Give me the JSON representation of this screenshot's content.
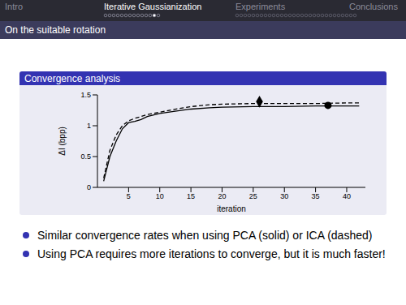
{
  "header": {
    "sections": [
      "Intro",
      "Iterative Gaussianization",
      "Experiments",
      "Conclusions"
    ],
    "active": 1
  },
  "frame_title": "On the suitable rotation",
  "block_title": "Convergence analysis",
  "chart_data": {
    "type": "line",
    "x_label": "iteration",
    "y_label": "ΔI (bpp)",
    "x": [
      1,
      2,
      3,
      4,
      5,
      6,
      7,
      8,
      10,
      12,
      15,
      18,
      20,
      25,
      30,
      35,
      40,
      42
    ],
    "series": [
      {
        "color": "#000000",
        "line_style": "solid",
        "values": [
          0.1,
          0.5,
          0.75,
          0.95,
          1.05,
          1.07,
          1.1,
          1.15,
          1.2,
          1.23,
          1.27,
          1.29,
          1.3,
          1.31,
          1.31,
          1.32,
          1.32,
          1.32
        ]
      },
      {
        "color": "#000000",
        "line_style": "dashed",
        "values": [
          0.15,
          0.6,
          0.85,
          1.0,
          1.08,
          1.12,
          1.15,
          1.18,
          1.22,
          1.26,
          1.31,
          1.34,
          1.35,
          1.36,
          1.36,
          1.36,
          1.37,
          1.37
        ]
      }
    ],
    "highlights": [
      {
        "x": 26,
        "y": 1.39,
        "marker": "diamond"
      },
      {
        "x": 37,
        "y": 1.33,
        "marker": "circle"
      }
    ],
    "xlim": [
      0,
      43
    ],
    "xticks": [
      5,
      10,
      15,
      20,
      25,
      30,
      35,
      40
    ],
    "ylim": [
      0,
      1.5
    ],
    "yticks": [
      0,
      0.5,
      1,
      1.5
    ]
  },
  "bullets": [
    "Similar convergence rates when using PCA (solid) or ICA (dashed)",
    "Using PCA requires more iterations to converge, but it is much faster!"
  ]
}
